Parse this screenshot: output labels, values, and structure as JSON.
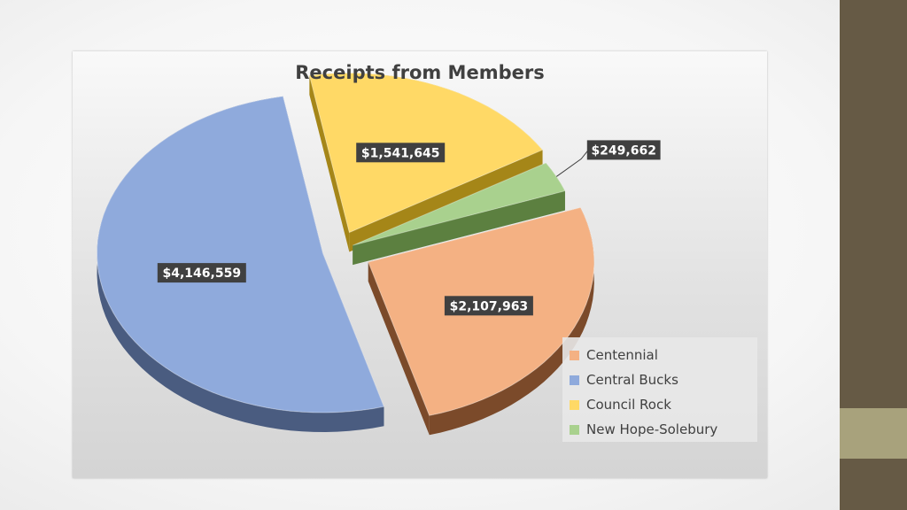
{
  "chart_data": {
    "type": "pie",
    "style": "3d-exploded",
    "title": "Receipts from Members",
    "legend_position": "bottom-right",
    "slices": [
      {
        "name": "Centennial",
        "value": 2107963,
        "label": "$2,107,963",
        "color": "#f4b183",
        "side_color": "#7b4a2a"
      },
      {
        "name": "Central Bucks",
        "value": 4146559,
        "label": "$4,146,559",
        "color": "#8faadc",
        "side_color": "#4a5c80"
      },
      {
        "name": "Council Rock",
        "value": 1541645,
        "label": "$1,541,645",
        "color": "#ffd966",
        "side_color": "#a58618"
      },
      {
        "name": "New Hope-Solebury",
        "value": 249662,
        "label": "$249,662",
        "color": "#a9d18e",
        "side_color": "#5c8040"
      }
    ]
  }
}
